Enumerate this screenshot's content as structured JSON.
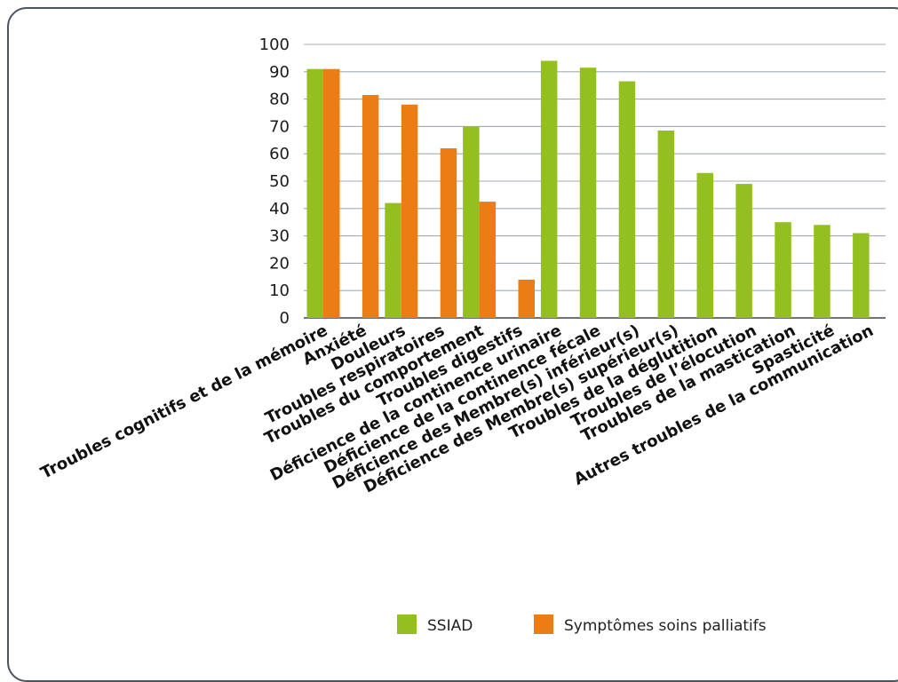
{
  "chart_data": {
    "type": "bar",
    "categories": [
      "Troubles cognitifs et de la mémoire",
      "Anxiété",
      "Douleurs",
      "Troubles respiratoires",
      "Troubles du comportement",
      "Troubles digestifs",
      "Déficience de la continence urinaire",
      "Déficience de la continence fécale",
      "Déficience des Membre(s) inférieur(s)",
      "Déficience des Membre(s) supérieur(s)",
      "Troubles de la déglutition",
      "Troubles de l’élocution",
      "Troubles de la mastication",
      "Spasticité",
      "Autres troubles de la communication"
    ],
    "series": [
      {
        "name": "SSIAD",
        "color": "#93c01f",
        "values": [
          91,
          null,
          42,
          null,
          70,
          null,
          94,
          91.5,
          86.5,
          68.5,
          53,
          49,
          35,
          34,
          31
        ]
      },
      {
        "name": "Symptômes soins palliatifs",
        "color": "#ec7c14",
        "values": [
          91,
          81.5,
          78,
          62,
          42.5,
          14,
          null,
          null,
          null,
          null,
          null,
          null,
          null,
          null,
          null
        ]
      }
    ],
    "yticks": [
      "0",
      "10",
      "20",
      "30",
      "40",
      "50",
      "60",
      "70",
      "80",
      "90",
      "100"
    ],
    "ylim": [
      0,
      100
    ],
    "grid": true,
    "legend_position": "bottom",
    "title": "",
    "xlabel": "",
    "ylabel": ""
  }
}
